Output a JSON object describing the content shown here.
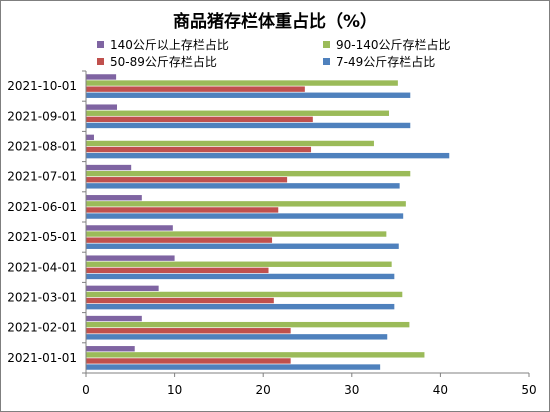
{
  "chart_data": {
    "type": "bar",
    "orientation": "horizontal",
    "title": "商品猪存栏体重占比（%）",
    "categories": [
      "2021-01-01",
      "2021-02-01",
      "2021-03-01",
      "2021-04-01",
      "2021-05-01",
      "2021-06-01",
      "2021-07-01",
      "2021-08-01",
      "2021-09-01",
      "2021-10-01"
    ],
    "series": [
      {
        "name": "140公斤以上存栏占比",
        "color": "#7f64a2",
        "values": [
          5.5,
          6.3,
          8.2,
          10.0,
          9.8,
          6.3,
          5.1,
          0.9,
          3.5,
          3.4
        ]
      },
      {
        "name": "90-140公斤存栏占比",
        "color": "#9bbb59",
        "values": [
          38.2,
          36.5,
          35.7,
          34.5,
          33.9,
          36.1,
          36.6,
          32.5,
          34.2,
          35.2
        ]
      },
      {
        "name": "50-89公斤存栏占比",
        "color": "#c0504d",
        "values": [
          23.1,
          23.1,
          21.2,
          20.6,
          21.0,
          21.7,
          22.7,
          25.4,
          25.6,
          24.7
        ]
      },
      {
        "name": "7-49公斤存栏占比",
        "color": "#4f81bd",
        "values": [
          33.2,
          34.0,
          34.8,
          34.8,
          35.3,
          35.8,
          35.4,
          41.0,
          36.6,
          36.6
        ]
      }
    ],
    "xlim": [
      0,
      50
    ],
    "xticks": [
      0,
      10,
      20,
      30,
      40,
      50
    ],
    "grid": false,
    "legend_position": "top"
  }
}
